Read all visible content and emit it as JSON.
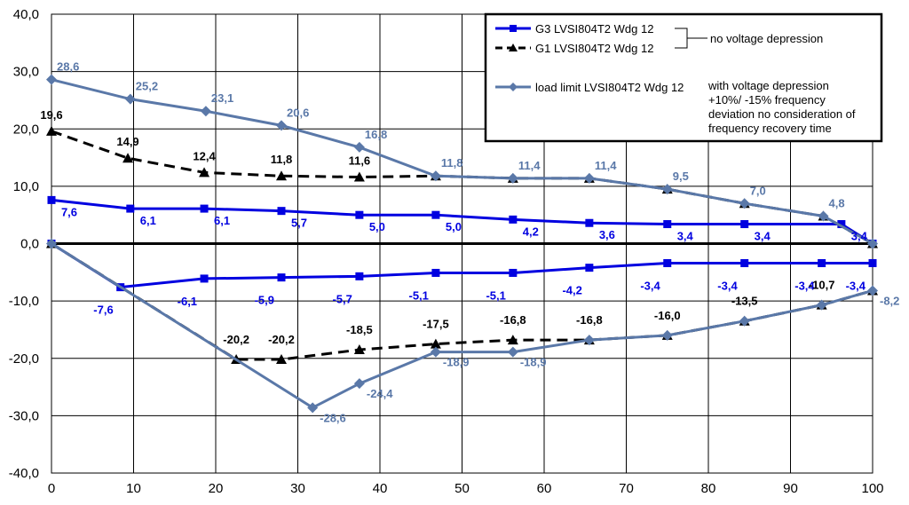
{
  "chart_data": {
    "type": "line",
    "xlim": [
      0,
      100
    ],
    "ylim": [
      -40,
      40
    ],
    "x_ticks": [
      "0",
      "10",
      "20",
      "30",
      "40",
      "50",
      "60",
      "70",
      "80",
      "90",
      "100"
    ],
    "y_ticks": [
      "40,0",
      "30,0",
      "20,0",
      "10,0",
      "0,0",
      "-10,0",
      "-20,0",
      "-30,0",
      "-40,0"
    ],
    "grid": true,
    "legend_position": "top-right",
    "legend": {
      "g3": "G3   LVSI804T2 Wdg 12",
      "g1": "G1   LVSI804T2 Wdg 12",
      "group_note": "no voltage depression",
      "load_limit": "load limit LVSI804T2 Wdg 12",
      "load_note": [
        "with voltage depression",
        "+10%/ -15% frequency",
        "deviation no consideration of",
        "frequency recovery time"
      ]
    },
    "series": [
      {
        "key": "g3_upper",
        "color": "#0000e0",
        "dash": "",
        "marker": "square",
        "x": [
          0,
          9.6,
          18.6,
          28,
          37.5,
          46.8,
          56.2,
          65.5,
          75,
          84.4,
          96.2,
          100
        ],
        "y": [
          7.6,
          6.1,
          6.1,
          5.7,
          5.0,
          5.0,
          4.2,
          3.6,
          3.4,
          3.4,
          3.4,
          0
        ],
        "labels": [
          "7,6",
          "6,1",
          "6,1",
          "5,7",
          "5,0",
          "5,0",
          "4,2",
          "3,6",
          "3,4",
          "3,4",
          "3,4",
          ""
        ]
      },
      {
        "key": "g3_lower",
        "color": "#0000e0",
        "dash": "",
        "marker": "square",
        "x": [
          0,
          8.4,
          18.6,
          28,
          37.5,
          46.8,
          56.2,
          65.5,
          75,
          84.4,
          93.8,
          100
        ],
        "y": [
          0,
          -7.6,
          -6.1,
          -5.9,
          -5.7,
          -5.1,
          -5.1,
          -4.2,
          -3.4,
          -3.4,
          -3.4,
          -3.4
        ],
        "labels": [
          "",
          "-7,6",
          "-6,1",
          "-5,9",
          "-5,7",
          "-5,1",
          "-5,1",
          "-4,2",
          "-3,4",
          "-3,4",
          "-3,4",
          "-3,4"
        ]
      },
      {
        "key": "g1_upper",
        "color": "#000000",
        "dash": "12,7",
        "marker": "triangle",
        "x": [
          0,
          9.3,
          18.6,
          28,
          37.5,
          46.8,
          56.2,
          65.5,
          75,
          84.4,
          94,
          100
        ],
        "y": [
          19.6,
          14.9,
          12.4,
          11.8,
          11.6,
          11.8,
          11.4,
          11.4,
          9.5,
          7.0,
          4.8,
          0
        ],
        "labels": [
          "19,6",
          "14,9",
          "12,4",
          "11,8",
          "11,6",
          "",
          "",
          "",
          "",
          "",
          "",
          ""
        ]
      },
      {
        "key": "g1_lower",
        "color": "#000000",
        "dash": "12,7",
        "marker": "triangle",
        "x": [
          0,
          22.5,
          28,
          37.5,
          46.8,
          56.2,
          65.5,
          75,
          84.4,
          93.8,
          100
        ],
        "y": [
          0,
          -20.2,
          -20.2,
          -18.5,
          -17.5,
          -16.8,
          -16.8,
          -16.0,
          -13.5,
          -10.7,
          -8.2
        ],
        "labels": [
          "",
          "-20,2",
          "-20,2",
          "-18,5",
          "-17,5",
          "-16,8",
          "-16,8",
          "-16,0",
          "-13,5",
          "-10,7",
          ""
        ]
      },
      {
        "key": "load_upper",
        "color": "#5a78a8",
        "dash": "",
        "marker": "diamond",
        "x": [
          0,
          9.6,
          18.8,
          28,
          37.5,
          46.8,
          56.2,
          65.5,
          75,
          84.4,
          94,
          100
        ],
        "y": [
          28.6,
          25.2,
          23.1,
          20.6,
          16.8,
          11.8,
          11.4,
          11.4,
          9.5,
          7.0,
          4.8,
          0
        ],
        "labels": [
          "28,6",
          "25,2",
          "23,1",
          "20,6",
          "16,8",
          "11,8",
          "11,4",
          "11,4",
          "9,5",
          "7,0",
          "4,8",
          ""
        ]
      },
      {
        "key": "load_lower",
        "color": "#5a78a8",
        "dash": "",
        "marker": "diamond",
        "x": [
          0,
          31.8,
          37.5,
          46.8,
          56.2,
          65.5,
          75,
          84.4,
          93.8,
          100
        ],
        "y": [
          0,
          -28.6,
          -24.4,
          -18.9,
          -18.9,
          -16.8,
          -16.0,
          -13.5,
          -10.7,
          -8.2
        ],
        "labels": [
          "",
          "-28,6",
          "-24,4",
          "-18,9",
          "-18,9",
          "",
          "",
          "",
          "",
          "-8,2"
        ]
      }
    ]
  }
}
